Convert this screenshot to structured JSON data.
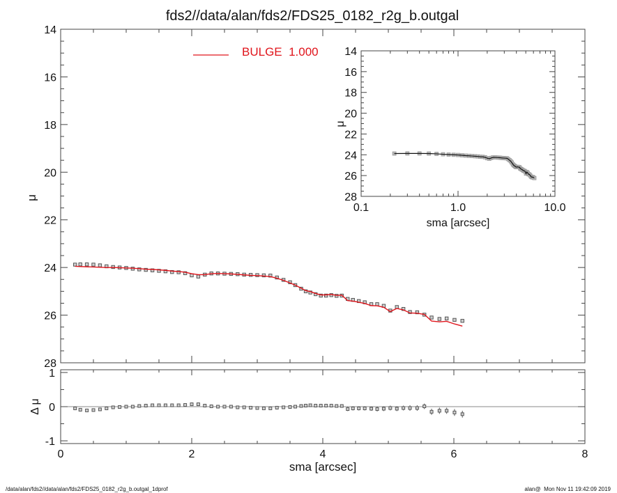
{
  "colors": {
    "model": "#e0141b",
    "data": "#555555",
    "axes": "#444444",
    "zero_line": "#888888"
  },
  "chart_data": [
    {
      "id": "main",
      "type": "scatter",
      "title": "fds2//data/alan/fds2/FDS25_0182_r2g_b.outgal",
      "xlabel": "sma [arcsec]",
      "ylabel": "μ",
      "xlim": [
        0,
        8
      ],
      "ylim": [
        28,
        14
      ],
      "y_inverted": true,
      "xticks": [
        "0",
        "2",
        "4",
        "6",
        "8"
      ],
      "yticks": [
        "14",
        "16",
        "18",
        "20",
        "22",
        "24",
        "26",
        "28"
      ],
      "legend": {
        "label": "BULGE  1.000",
        "placement": "top-center"
      },
      "marker": "open-square",
      "x": [
        0.22,
        0.3,
        0.4,
        0.5,
        0.6,
        0.7,
        0.8,
        0.9,
        1.0,
        1.1,
        1.2,
        1.3,
        1.4,
        1.5,
        1.6,
        1.7,
        1.8,
        1.9,
        2.0,
        2.1,
        2.2,
        2.3,
        2.4,
        2.5,
        2.6,
        2.7,
        2.8,
        2.9,
        3.0,
        3.1,
        3.2,
        3.3,
        3.4,
        3.5,
        3.58,
        3.67,
        3.74,
        3.81,
        3.89,
        3.97,
        4.05,
        4.13,
        4.21,
        4.29,
        4.38,
        4.46,
        4.55,
        4.64,
        4.74,
        4.83,
        4.93,
        5.03,
        5.13,
        5.23,
        5.33,
        5.44,
        5.55,
        5.66,
        5.78,
        5.89,
        6.01,
        6.13
      ],
      "mu": [
        23.88,
        23.87,
        23.87,
        23.88,
        23.91,
        23.95,
        23.98,
        24.0,
        24.02,
        24.05,
        24.08,
        24.1,
        24.12,
        24.14,
        24.16,
        24.19,
        24.2,
        24.24,
        24.33,
        24.38,
        24.3,
        24.25,
        24.25,
        24.26,
        24.27,
        24.28,
        24.3,
        24.31,
        24.32,
        24.33,
        24.34,
        24.42,
        24.52,
        24.62,
        24.74,
        24.89,
        25.0,
        25.05,
        25.12,
        25.18,
        25.18,
        25.16,
        25.19,
        25.18,
        25.32,
        25.36,
        25.41,
        25.46,
        25.54,
        25.54,
        25.61,
        25.81,
        25.66,
        25.74,
        25.87,
        25.88,
        25.98,
        26.1,
        26.16,
        26.14,
        26.2,
        26.24
      ],
      "model": [
        23.95,
        23.96,
        23.97,
        23.98,
        23.99,
        24.0,
        24.0,
        24.01,
        24.02,
        24.03,
        24.05,
        24.07,
        24.08,
        24.1,
        24.12,
        24.15,
        24.17,
        24.2,
        24.26,
        24.3,
        24.3,
        24.26,
        24.25,
        24.26,
        24.27,
        24.29,
        24.31,
        24.33,
        24.34,
        24.36,
        24.38,
        24.45,
        24.54,
        24.65,
        24.74,
        24.87,
        24.97,
        25.01,
        25.09,
        25.15,
        25.15,
        25.13,
        25.17,
        25.16,
        25.39,
        25.41,
        25.46,
        25.51,
        25.6,
        25.61,
        25.67,
        25.85,
        25.72,
        25.78,
        25.91,
        25.92,
        25.97,
        26.25,
        26.28,
        26.26,
        26.37,
        26.46
      ]
    },
    {
      "id": "residual",
      "type": "scatter",
      "xlabel": "sma [arcsec]",
      "ylabel": "Δ μ",
      "xlim": [
        0,
        8
      ],
      "ylim": [
        -1.08,
        1.08
      ],
      "yticks": [
        "1",
        "0",
        "-1"
      ],
      "zero_line": true,
      "residual": [
        -0.05,
        -0.09,
        -0.11,
        -0.1,
        -0.08,
        -0.05,
        -0.02,
        -0.01,
        0.0,
        0.0,
        0.02,
        0.03,
        0.04,
        0.04,
        0.04,
        0.04,
        0.04,
        0.05,
        0.07,
        0.07,
        0.03,
        0.01,
        0.0,
        0.0,
        0.0,
        -0.02,
        -0.02,
        -0.03,
        -0.04,
        -0.05,
        -0.05,
        -0.03,
        -0.02,
        -0.01,
        0.0,
        0.02,
        0.03,
        0.04,
        0.03,
        0.03,
        0.03,
        0.03,
        0.02,
        0.02,
        -0.07,
        -0.05,
        -0.05,
        -0.05,
        -0.06,
        -0.07,
        -0.06,
        -0.04,
        -0.06,
        -0.04,
        -0.04,
        -0.04,
        0.01,
        -0.15,
        -0.12,
        -0.12,
        -0.17,
        -0.22
      ],
      "error": [
        0.01,
        0.01,
        0.01,
        0.01,
        0.01,
        0.01,
        0.01,
        0.01,
        0.01,
        0.01,
        0.01,
        0.01,
        0.01,
        0.01,
        0.01,
        0.01,
        0.01,
        0.01,
        0.01,
        0.01,
        0.01,
        0.01,
        0.01,
        0.01,
        0.01,
        0.01,
        0.01,
        0.01,
        0.01,
        0.01,
        0.01,
        0.02,
        0.02,
        0.02,
        0.03,
        0.04,
        0.04,
        0.04,
        0.05,
        0.05,
        0.05,
        0.05,
        0.05,
        0.05,
        0.06,
        0.06,
        0.06,
        0.06,
        0.06,
        0.07,
        0.07,
        0.07,
        0.07,
        0.07,
        0.08,
        0.08,
        0.08,
        0.09,
        0.09,
        0.09,
        0.1,
        0.1
      ]
    },
    {
      "id": "inset",
      "type": "line",
      "xlabel": "sma [arcsec]",
      "ylabel": "μ",
      "xscale": "log",
      "xlim": [
        0.1,
        10.0
      ],
      "ylim": [
        28,
        14
      ],
      "y_inverted": true,
      "xticks": [
        "0.1",
        "1.0",
        "10.0"
      ],
      "yticks": [
        "14",
        "16",
        "18",
        "20",
        "22",
        "24",
        "26",
        "28"
      ]
    }
  ],
  "footer": {
    "left": "/data/alan/fds2//data/alan/fds2/FDS25_0182_r2g_b.outgal_1dprof",
    "right": "alan@  Mon Nov 11 19:42:09 2019"
  }
}
